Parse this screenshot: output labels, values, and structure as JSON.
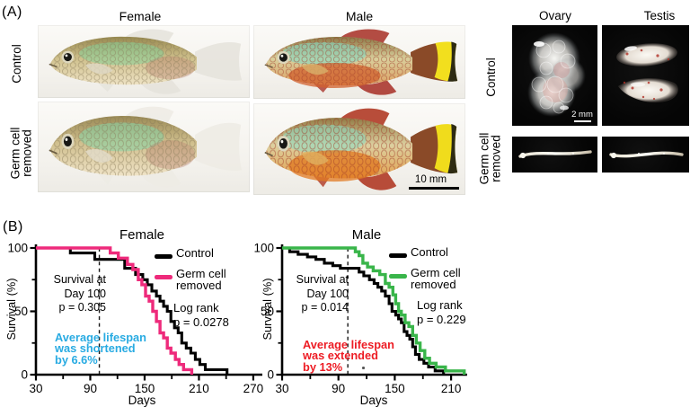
{
  "panel_a": {
    "label": "(A)",
    "col_female": "Female",
    "col_male": "Male",
    "col_ovary": "Ovary",
    "col_testis": "Testis",
    "row_fish_control": "Control",
    "row_fish_removed": "Germ cell\nremoved",
    "row_gonad_control": "Control",
    "row_gonad_removed": "Germ cell\nremoved",
    "scalebar_fish": "10 mm",
    "scalebar_gonad": "2 mm"
  },
  "panel_b": {
    "label": "(B)"
  },
  "chart_data": [
    {
      "type": "line",
      "subtype": "kaplan-meier-step",
      "title": "Female",
      "xlabel": "Days",
      "ylabel": "Survival (%)",
      "xlim": [
        30,
        280
      ],
      "ylim": [
        0,
        100
      ],
      "xticks_major": [
        30,
        90,
        150,
        210,
        270
      ],
      "xticks_minor": [
        60,
        120,
        180,
        240
      ],
      "yticks_major": [
        100,
        50,
        0
      ],
      "yticks_minor": [
        75,
        25
      ],
      "dashed_line_x": 100,
      "grid": false,
      "legend_position": "upper-right",
      "series": [
        {
          "name": "Control",
          "color": "#000000",
          "points": [
            [
              30,
              100
            ],
            [
              68,
              100
            ],
            [
              68,
              96
            ],
            [
              95,
              96
            ],
            [
              95,
              91
            ],
            [
              128,
              91
            ],
            [
              128,
              84
            ],
            [
              140,
              84
            ],
            [
              140,
              79
            ],
            [
              148,
              79
            ],
            [
              148,
              75
            ],
            [
              153,
              75
            ],
            [
              153,
              71
            ],
            [
              158,
              71
            ],
            [
              158,
              66
            ],
            [
              163,
              66
            ],
            [
              163,
              62
            ],
            [
              167,
              62
            ],
            [
              167,
              58
            ],
            [
              171,
              58
            ],
            [
              171,
              54
            ],
            [
              175,
              54
            ],
            [
              175,
              50
            ],
            [
              179,
              50
            ],
            [
              179,
              42
            ],
            [
              183,
              42
            ],
            [
              183,
              37
            ],
            [
              187,
              37
            ],
            [
              187,
              33
            ],
            [
              191,
              33
            ],
            [
              191,
              25
            ],
            [
              196,
              25
            ],
            [
              196,
              21
            ],
            [
              201,
              21
            ],
            [
              201,
              17
            ],
            [
              206,
              17
            ],
            [
              206,
              12
            ],
            [
              211,
              12
            ],
            [
              211,
              8
            ],
            [
              217,
              8
            ],
            [
              217,
              4
            ],
            [
              241,
              4
            ],
            [
              241,
              0
            ]
          ]
        },
        {
          "name": "Germ cell\nremoved",
          "color": "#EE2A7B",
          "points": [
            [
              30,
              100
            ],
            [
              112,
              100
            ],
            [
              112,
              96
            ],
            [
              121,
              96
            ],
            [
              121,
              92
            ],
            [
              131,
              92
            ],
            [
              131,
              87
            ],
            [
              137,
              87
            ],
            [
              137,
              83
            ],
            [
              143,
              83
            ],
            [
              143,
              75
            ],
            [
              147,
              75
            ],
            [
              147,
              71
            ],
            [
              151,
              71
            ],
            [
              151,
              62
            ],
            [
              155,
              62
            ],
            [
              155,
              58
            ],
            [
              159,
              58
            ],
            [
              159,
              50
            ],
            [
              163,
              50
            ],
            [
              163,
              42
            ],
            [
              167,
              42
            ],
            [
              167,
              33
            ],
            [
              171,
              33
            ],
            [
              171,
              29
            ],
            [
              175,
              29
            ],
            [
              175,
              21
            ],
            [
              179,
              21
            ],
            [
              179,
              17
            ],
            [
              184,
              17
            ],
            [
              184,
              12
            ],
            [
              188,
              12
            ],
            [
              188,
              8
            ],
            [
              193,
              8
            ],
            [
              193,
              4
            ],
            [
              202,
              4
            ],
            [
              202,
              0
            ]
          ]
        }
      ],
      "annotations": [
        {
          "id": "survival_at_day_100",
          "text": "Survival at\nDay 100\np = 0.305",
          "color": "#000000"
        },
        {
          "id": "log_rank",
          "text": "Log rank\np = 0.0278",
          "color": "#000000"
        },
        {
          "id": "lifespan_note",
          "text": "Average lifespan\nwas shortened\nby 6.6%",
          "color": "#29ABE2"
        }
      ]
    },
    {
      "type": "line",
      "subtype": "kaplan-meier-step",
      "title": "Male",
      "xlabel": "Days",
      "ylabel": "Survival (%)",
      "xlim": [
        30,
        227
      ],
      "ylim": [
        0,
        100
      ],
      "xticks_major": [
        30,
        90,
        150,
        210
      ],
      "xticks_minor": [
        60,
        120,
        180
      ],
      "yticks_major": [
        100,
        50,
        0
      ],
      "yticks_minor": [
        75,
        25
      ],
      "dashed_line_x": 100,
      "grid": false,
      "legend_position": "upper-right",
      "series": [
        {
          "name": "Control",
          "color": "#000000",
          "points": [
            [
              30,
              100
            ],
            [
              38,
              100
            ],
            [
              38,
              97
            ],
            [
              47,
              97
            ],
            [
              47,
              95
            ],
            [
              57,
              95
            ],
            [
              57,
              93
            ],
            [
              66,
              93
            ],
            [
              66,
              91
            ],
            [
              75,
              91
            ],
            [
              75,
              88
            ],
            [
              84,
              88
            ],
            [
              84,
              86
            ],
            [
              92,
              86
            ],
            [
              92,
              84
            ],
            [
              112,
              84
            ],
            [
              112,
              81
            ],
            [
              117,
              81
            ],
            [
              117,
              78
            ],
            [
              123,
              78
            ],
            [
              123,
              75
            ],
            [
              128,
              75
            ],
            [
              128,
              72
            ],
            [
              132,
              72
            ],
            [
              132,
              69
            ],
            [
              136,
              69
            ],
            [
              136,
              66
            ],
            [
              140,
              66
            ],
            [
              140,
              62
            ],
            [
              144,
              62
            ],
            [
              144,
              56
            ],
            [
              147,
              56
            ],
            [
              147,
              50
            ],
            [
              151,
              50
            ],
            [
              151,
              47
            ],
            [
              154,
              47
            ],
            [
              154,
              44
            ],
            [
              157,
              44
            ],
            [
              157,
              41
            ],
            [
              160,
              41
            ],
            [
              160,
              34
            ],
            [
              163,
              34
            ],
            [
              163,
              31
            ],
            [
              166,
              31
            ],
            [
              166,
              28
            ],
            [
              169,
              28
            ],
            [
              169,
              22
            ],
            [
              172,
              22
            ],
            [
              172,
              16
            ],
            [
              176,
              16
            ],
            [
              176,
              12
            ],
            [
              181,
              12
            ],
            [
              181,
              9
            ],
            [
              186,
              9
            ],
            [
              186,
              6
            ],
            [
              193,
              6
            ],
            [
              193,
              3
            ],
            [
              202,
              3
            ],
            [
              202,
              0
            ]
          ]
        },
        {
          "name": "Germ cell\nremoved",
          "color": "#39B54A",
          "points": [
            [
              30,
              100
            ],
            [
              108,
              100
            ],
            [
              108,
              97
            ],
            [
              112,
              97
            ],
            [
              112,
              94
            ],
            [
              116,
              94
            ],
            [
              116,
              88
            ],
            [
              121,
              88
            ],
            [
              121,
              85
            ],
            [
              127,
              85
            ],
            [
              127,
              82
            ],
            [
              134,
              82
            ],
            [
              134,
              79
            ],
            [
              140,
              79
            ],
            [
              140,
              72
            ],
            [
              144,
              72
            ],
            [
              144,
              69
            ],
            [
              148,
              69
            ],
            [
              148,
              63
            ],
            [
              151,
              63
            ],
            [
              151,
              56
            ],
            [
              154,
              56
            ],
            [
              154,
              50
            ],
            [
              157,
              50
            ],
            [
              157,
              47
            ],
            [
              161,
              47
            ],
            [
              161,
              41
            ],
            [
              165,
              41
            ],
            [
              165,
              38
            ],
            [
              169,
              38
            ],
            [
              169,
              31
            ],
            [
              173,
              31
            ],
            [
              173,
              25
            ],
            [
              177,
              25
            ],
            [
              177,
              19
            ],
            [
              182,
              19
            ],
            [
              182,
              13
            ],
            [
              187,
              13
            ],
            [
              187,
              9
            ],
            [
              194,
              9
            ],
            [
              194,
              6
            ],
            [
              204,
              6
            ],
            [
              204,
              3
            ],
            [
              224,
              3
            ],
            [
              224,
              0
            ]
          ]
        }
      ],
      "annotations": [
        {
          "id": "survival_at_day_100",
          "text": "Survival at\nDay 100\np = 0.014",
          "color": "#000000"
        },
        {
          "id": "log_rank",
          "text": "Log rank\np = 0.229",
          "color": "#000000"
        },
        {
          "id": "lifespan_note",
          "text": "Average lifespan\nwas extended\nby 13%",
          "color": "#ED1C24"
        }
      ]
    }
  ]
}
